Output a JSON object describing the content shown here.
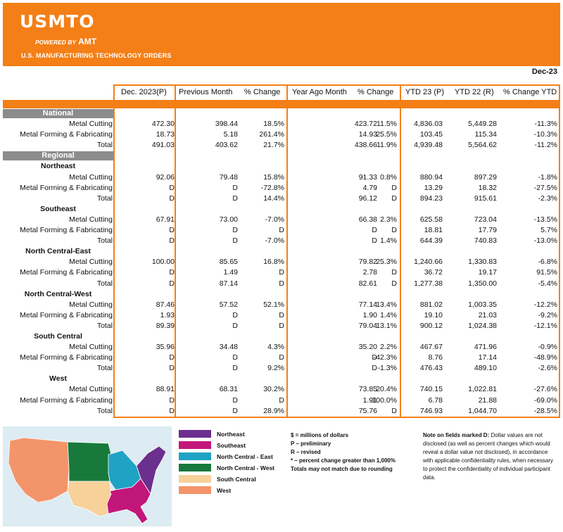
{
  "header": {
    "logo": "USMTO",
    "powered_by": "POWERED BY",
    "powered_brand": "AMT",
    "tagline": "U.S. MANUFACTURING TECHNOLOGY ORDERS",
    "brand_color": "#f47f16"
  },
  "period": "Dec-23",
  "columns": [
    "Dec. 2023(P)",
    "Previous Month",
    "% Change",
    "Year Ago Month",
    "% Change",
    "YTD 23 (P)",
    "YTD 22 (R)",
    "% Change YTD"
  ],
  "sections": [
    {
      "title": "National",
      "groups": [
        {
          "name": "",
          "rows": [
            {
              "label": "Metal Cutting",
              "values": [
                "472.30",
                "398.44",
                "18.5%",
                "423.72",
                "11.5%",
                "4,836.03",
                "5,449.28",
                "-11.3%"
              ]
            },
            {
              "label": "Metal Forming & Fabricating",
              "values": [
                "18.73",
                "5.18",
                "261.4%",
                "14.93",
                "25.5%",
                "103.45",
                "115.34",
                "-10.3%"
              ]
            },
            {
              "label": "Total",
              "values": [
                "491.03",
                "403.62",
                "21.7%",
                "438.66",
                "11.9%",
                "4,939.48",
                "5,564.62",
                "-11.2%"
              ]
            }
          ]
        }
      ]
    },
    {
      "title": "Regional",
      "groups": [
        {
          "name": "Northeast",
          "rows": [
            {
              "label": "Metal Cutting",
              "values": [
                "92.06",
                "79.48",
                "15.8%",
                "91.33",
                "0.8%",
                "880.94",
                "897.29",
                "-1.8%"
              ]
            },
            {
              "label": "Metal Forming & Fabricating",
              "values": [
                "D",
                "D",
                "-72.8%",
                "4.79",
                "D",
                "13.29",
                "18.32",
                "-27.5%"
              ]
            },
            {
              "label": "Total",
              "values": [
                "D",
                "D",
                "14.4%",
                "96.12",
                "D",
                "894.23",
                "915.61",
                "-2.3%"
              ]
            }
          ]
        },
        {
          "name": "Southeast",
          "rows": [
            {
              "label": "Metal Cutting",
              "values": [
                "67.91",
                "73.00",
                "-7.0%",
                "66.38",
                "2.3%",
                "625.58",
                "723.04",
                "-13.5%"
              ]
            },
            {
              "label": "Metal Forming & Fabricating",
              "values": [
                "D",
                "D",
                "D",
                "D",
                "D",
                "18.81",
                "17.79",
                "5.7%"
              ]
            },
            {
              "label": "Total",
              "values": [
                "D",
                "D",
                "-7.0%",
                "D",
                "1.4%",
                "644.39",
                "740.83",
                "-13.0%"
              ]
            }
          ]
        },
        {
          "name": "North Central-East",
          "rows": [
            {
              "label": "Metal Cutting",
              "values": [
                "100.00",
                "85.65",
                "16.8%",
                "79.82",
                "25.3%",
                "1,240.66",
                "1,330.83",
                "-6.8%"
              ]
            },
            {
              "label": "Metal Forming & Fabricating",
              "values": [
                "D",
                "1.49",
                "D",
                "2.78",
                "D",
                "36.72",
                "19.17",
                "91.5%"
              ]
            },
            {
              "label": "Total",
              "values": [
                "D",
                "87.14",
                "D",
                "82.61",
                "D",
                "1,277.38",
                "1,350.00",
                "-5.4%"
              ]
            }
          ]
        },
        {
          "name": "North Central-West",
          "rows": [
            {
              "label": "Metal Cutting",
              "values": [
                "87.46",
                "57.52",
                "52.1%",
                "77.14",
                "13.4%",
                "881.02",
                "1,003.35",
                "-12.2%"
              ]
            },
            {
              "label": "Metal Forming & Fabricating",
              "values": [
                "1.93",
                "D",
                "D",
                "1.90",
                "1.4%",
                "19.10",
                "21.03",
                "-9.2%"
              ]
            },
            {
              "label": "Total",
              "values": [
                "89.39",
                "D",
                "D",
                "79.04",
                "13.1%",
                "900.12",
                "1,024.38",
                "-12.1%"
              ]
            }
          ]
        },
        {
          "name": "South Central",
          "rows": [
            {
              "label": "Metal Cutting",
              "values": [
                "35.96",
                "34.48",
                "4.3%",
                "35.20",
                "2.2%",
                "467.67",
                "471.96",
                "-0.9%"
              ]
            },
            {
              "label": "Metal Forming & Fabricating",
              "values": [
                "D",
                "D",
                "D",
                "D",
                "-42.3%",
                "8.76",
                "17.14",
                "-48.9%"
              ]
            },
            {
              "label": "Total",
              "values": [
                "D",
                "D",
                "9.2%",
                "D",
                "-1.3%",
                "476.43",
                "489.10",
                "-2.6%"
              ]
            }
          ]
        },
        {
          "name": "West",
          "rows": [
            {
              "label": "Metal Cutting",
              "values": [
                "88.91",
                "68.31",
                "30.2%",
                "73.85",
                "20.4%",
                "740.15",
                "1,022.81",
                "-27.6%"
              ]
            },
            {
              "label": "Metal Forming & Fabricating",
              "values": [
                "D",
                "D",
                "D",
                "1.91",
                "-100.0%",
                "6.78",
                "21.88",
                "-69.0%"
              ]
            },
            {
              "label": "Total",
              "values": [
                "D",
                "D",
                "28.9%",
                "75.76",
                "D",
                "746.93",
                "1,044.70",
                "-28.5%"
              ]
            }
          ]
        }
      ]
    }
  ],
  "legend": [
    {
      "label": "Northeast",
      "color": "#6b2f8e"
    },
    {
      "label": "Southeast",
      "color": "#c2177a"
    },
    {
      "label": "North Central - East",
      "color": "#1fa3c4"
    },
    {
      "label": "North Central - West",
      "color": "#177a3c"
    },
    {
      "label": "South Central",
      "color": "#f8d09a"
    },
    {
      "label": "West",
      "color": "#f4946a"
    }
  ],
  "notes": [
    "$ = millions of dollars",
    "P – preliminary",
    "R – revised",
    "* – percent change greater than 1,000%",
    "Totals may not match due to rounding"
  ],
  "confidentiality": {
    "heading": "Note on fields marked D:",
    "text": "Dollar values are not disclosed (as well as percent changes which would reveal a dollar value not disclosed), in accordance with applicable confidentiality rules, when necessary to protect the confidentiality of individual participant data."
  }
}
